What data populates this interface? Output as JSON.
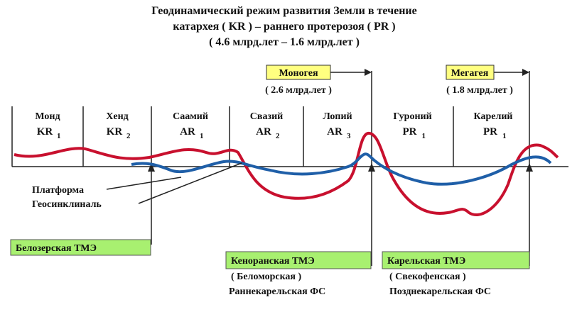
{
  "title": {
    "line1": "Геодинамический режим развития Земли в течение",
    "line2": "катархея ( KR )  –  раннего протерозоя ( PR  )",
    "line3": "( 4.6 млрд.лет – 1.6 млрд.лет )"
  },
  "markers": [
    {
      "label": "Моногея",
      "age": "( 2.6 млрд.лет )"
    },
    {
      "label": "Мегагея",
      "age": "( 1.8 млрд.лет )"
    }
  ],
  "periods": [
    {
      "name": "Монд",
      "code": "KR",
      "sub": "1"
    },
    {
      "name": "Хенд",
      "code": "KR",
      "sub": "2"
    },
    {
      "name": "Саамий",
      "code": "AR",
      "sub": "1"
    },
    {
      "name": "Свазий",
      "code": "AR",
      "sub": "2"
    },
    {
      "name": "Лопий",
      "code": "AR",
      "sub": "3"
    },
    {
      "name": "Гуроний",
      "code": "PR",
      "sub": "1"
    },
    {
      "name": "Карелий",
      "code": "PR",
      "sub": "1"
    }
  ],
  "legend": [
    "Платформа",
    "Геосинклиналь"
  ],
  "events": [
    {
      "label": "Белозерская ТМЭ"
    },
    {
      "label": "Кеноранская ТМЭ",
      "note": "( Беломорская )",
      "phase": "Раннекарельская ФС"
    },
    {
      "label": "Карельская ТМЭ",
      "note": "( Свекофенская )",
      "phase": "Позднекарельская ФС"
    }
  ]
}
